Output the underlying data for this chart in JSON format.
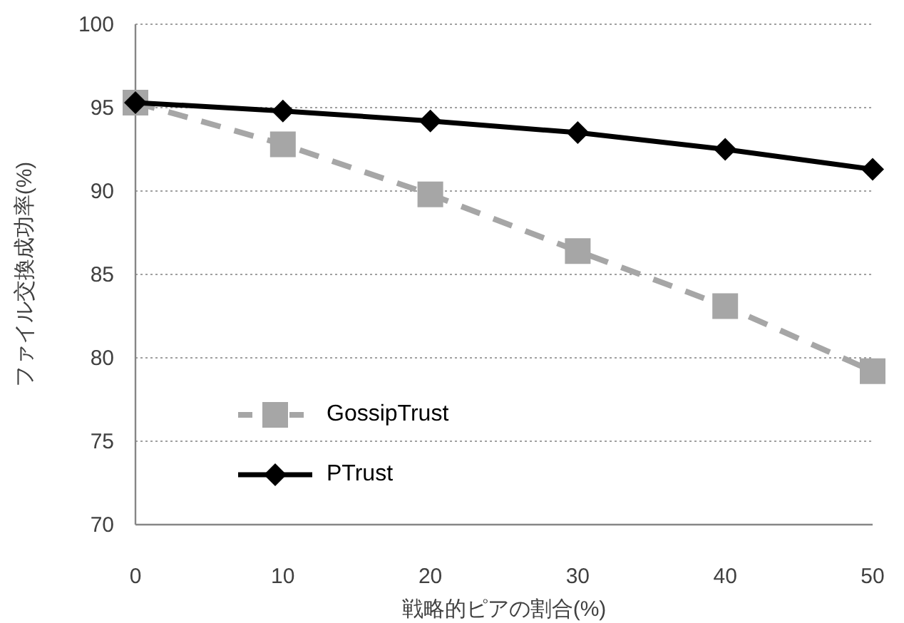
{
  "chart_data": {
    "type": "line",
    "xlabel": "戦略的ピアの割合(%)",
    "ylabel": "ファイル交換成功率(%)",
    "x": [
      0,
      10,
      20,
      30,
      40,
      50
    ],
    "xlim": [
      0,
      50
    ],
    "xticks": [
      0,
      10,
      20,
      30,
      40,
      50
    ],
    "ylim": [
      70,
      100
    ],
    "yticks": [
      70,
      75,
      80,
      85,
      90,
      95,
      100
    ],
    "grid": "y",
    "legend": "bottom left",
    "series": [
      {
        "name": "GossipTrust",
        "color": "#a6a6a6",
        "marker": "square",
        "line_style": "dashed",
        "values": [
          95.3,
          92.8,
          89.8,
          86.4,
          83.1,
          79.2
        ]
      },
      {
        "name": "PTrust",
        "color": "#000000",
        "marker": "diamond",
        "line_style": "solid",
        "values": [
          95.3,
          94.8,
          94.2,
          93.5,
          92.5,
          91.3
        ]
      }
    ]
  }
}
